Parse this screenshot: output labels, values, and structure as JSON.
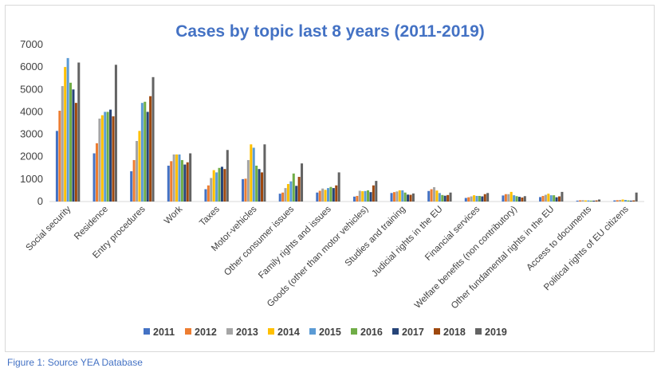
{
  "caption": "Figure 1: Source YEA Database",
  "chart_data": {
    "type": "bar",
    "title": "Cases by topic last 8 years (2011-2019)",
    "xlabel": "",
    "ylabel": "",
    "ylim": [
      0,
      7000
    ],
    "yticks": [
      0,
      1000,
      2000,
      3000,
      4000,
      5000,
      6000,
      7000
    ],
    "grid": false,
    "legend_position": "bottom",
    "categories": [
      "Social security",
      "Residence",
      "Entry procedures",
      "Work",
      "Taxes",
      "Motor-vehicles",
      "Other consumer issues",
      "Family rights and issues",
      "Goods (other than motor vehicles)",
      "Studies and training",
      "Judicial rights in the EU",
      "Financial services",
      "Welfare benefits (non contributory)",
      "Other fundamental rights in the EU",
      "Access to documents",
      "Political rights of EU citizens"
    ],
    "series": [
      {
        "name": "2011",
        "color": "#4472c4",
        "values": [
          3150,
          2150,
          1350,
          1600,
          550,
          1000,
          350,
          400,
          220,
          380,
          470,
          160,
          270,
          200,
          40,
          50
        ]
      },
      {
        "name": "2012",
        "color": "#ed7d31",
        "values": [
          4050,
          2600,
          1850,
          1800,
          720,
          1020,
          400,
          480,
          250,
          420,
          550,
          190,
          330,
          250,
          55,
          60
        ]
      },
      {
        "name": "2013",
        "color": "#a5a5a5",
        "values": [
          5150,
          3700,
          2700,
          2100,
          1050,
          1850,
          600,
          580,
          480,
          450,
          640,
          230,
          330,
          300,
          60,
          70
        ]
      },
      {
        "name": "2014",
        "color": "#ffc000",
        "values": [
          6000,
          3850,
          3150,
          2100,
          1400,
          2550,
          780,
          520,
          460,
          500,
          490,
          280,
          430,
          350,
          50,
          90
        ]
      },
      {
        "name": "2015",
        "color": "#5b9bd5",
        "values": [
          6400,
          4000,
          4400,
          2100,
          1300,
          2400,
          900,
          600,
          470,
          500,
          380,
          250,
          280,
          280,
          50,
          70
        ]
      },
      {
        "name": "2016",
        "color": "#70ad47",
        "values": [
          5300,
          4000,
          4450,
          1850,
          1500,
          1600,
          1250,
          650,
          500,
          400,
          290,
          250,
          240,
          280,
          40,
          50
        ]
      },
      {
        "name": "2017",
        "color": "#264478",
        "values": [
          5000,
          4100,
          4000,
          1650,
          1550,
          1450,
          700,
          600,
          420,
          310,
          260,
          230,
          210,
          190,
          40,
          40
        ]
      },
      {
        "name": "2018",
        "color": "#9e480e",
        "values": [
          4400,
          3800,
          4700,
          1750,
          1450,
          1300,
          1100,
          720,
          720,
          300,
          290,
          330,
          180,
          230,
          50,
          50
        ]
      },
      {
        "name": "2019",
        "color": "#636363",
        "values": [
          6200,
          6100,
          5550,
          2150,
          2300,
          2550,
          1700,
          1300,
          920,
          360,
          400,
          380,
          240,
          430,
          90,
          400
        ]
      }
    ]
  }
}
